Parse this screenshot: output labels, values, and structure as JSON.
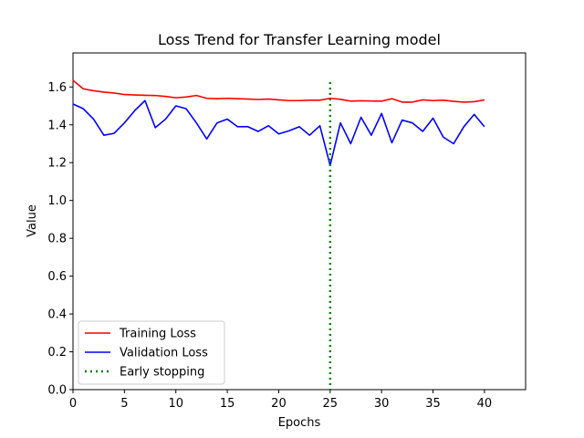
{
  "chart_data": {
    "type": "line",
    "title": "Loss Trend for Transfer Learning model",
    "xlabel": "Epochs",
    "ylabel": "Value",
    "xlim": [
      0,
      44
    ],
    "ylim": [
      0,
      1.78
    ],
    "xticks": [
      0,
      5,
      10,
      15,
      20,
      25,
      30,
      35,
      40
    ],
    "yticks": [
      0.0,
      0.2,
      0.4,
      0.6,
      0.8,
      1.0,
      1.2,
      1.4,
      1.6
    ],
    "grid": false,
    "legend_position": "lower-left",
    "x": [
      0,
      1,
      2,
      3,
      4,
      5,
      6,
      7,
      8,
      9,
      10,
      11,
      12,
      13,
      14,
      15,
      16,
      17,
      18,
      19,
      20,
      21,
      22,
      23,
      24,
      25,
      26,
      27,
      28,
      29,
      30,
      31,
      32,
      33,
      34,
      35,
      36,
      37,
      38,
      39,
      40
    ],
    "series": [
      {
        "name": "Training Loss",
        "color": "#ff0000",
        "style": "solid",
        "values": [
          1.635,
          1.59,
          1.58,
          1.573,
          1.568,
          1.56,
          1.558,
          1.556,
          1.555,
          1.55,
          1.543,
          1.547,
          1.555,
          1.54,
          1.538,
          1.54,
          1.538,
          1.536,
          1.534,
          1.536,
          1.532,
          1.528,
          1.528,
          1.53,
          1.53,
          1.54,
          1.535,
          1.525,
          1.527,
          1.526,
          1.525,
          1.538,
          1.52,
          1.52,
          1.532,
          1.528,
          1.53,
          1.524,
          1.52,
          1.522,
          1.532
        ]
      },
      {
        "name": "Validation Loss",
        "color": "#0000ff",
        "style": "solid",
        "values": [
          1.51,
          1.485,
          1.43,
          1.345,
          1.355,
          1.41,
          1.475,
          1.528,
          1.385,
          1.43,
          1.5,
          1.485,
          1.41,
          1.325,
          1.41,
          1.43,
          1.39,
          1.39,
          1.365,
          1.395,
          1.352,
          1.368,
          1.39,
          1.345,
          1.395,
          1.185,
          1.41,
          1.3,
          1.44,
          1.345,
          1.46,
          1.305,
          1.425,
          1.41,
          1.365,
          1.435,
          1.335,
          1.3,
          1.39,
          1.455,
          1.39
        ]
      }
    ],
    "vlines": [
      {
        "name": "Early stopping",
        "x": 25,
        "color": "#008000",
        "style": "dotted"
      }
    ]
  }
}
